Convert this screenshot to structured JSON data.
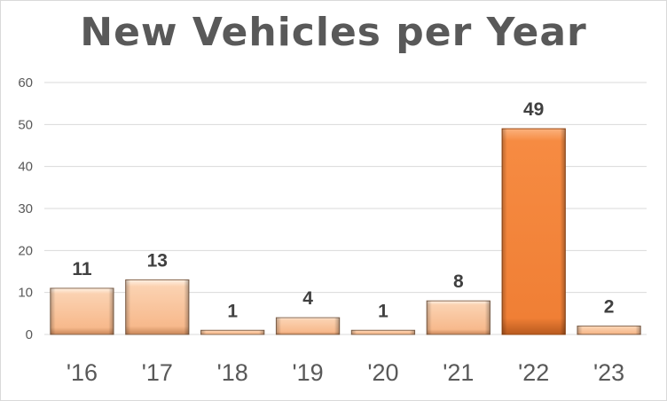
{
  "chart_data": {
    "type": "bar",
    "title": "New Vehicles per Year",
    "categories": [
      "'16",
      "'17",
      "'18",
      "'19",
      "'20",
      "'21",
      "'22",
      "'23"
    ],
    "values": [
      11,
      13,
      1,
      4,
      1,
      8,
      49,
      2
    ],
    "ylim": [
      0,
      60
    ],
    "yticks": [
      0,
      10,
      20,
      30,
      40,
      50,
      60
    ],
    "grid": true,
    "colors": {
      "bar": "#f9c197",
      "bar_highlight": "#f4843c",
      "highlight_category": "'22",
      "grid": "#d9d9d9",
      "text": "#595959"
    }
  }
}
